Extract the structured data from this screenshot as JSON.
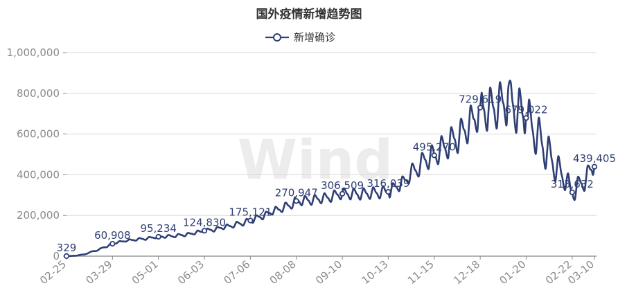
{
  "chart_data": {
    "type": "line",
    "title": "国外疫情新增趋势图",
    "legend": {
      "label": "新增确诊",
      "position": "top-center"
    },
    "color": "#2f3f73",
    "watermark": "Wind",
    "ylim": [
      0,
      1000000
    ],
    "yticks": [
      {
        "v": 0,
        "label": "0"
      },
      {
        "v": 200000,
        "label": "200,000"
      },
      {
        "v": 400000,
        "label": "400,000"
      },
      {
        "v": 600000,
        "label": "600,000"
      },
      {
        "v": 800000,
        "label": "800,000"
      },
      {
        "v": 1000000,
        "label": "1,000,000"
      }
    ],
    "xlabels": [
      "02-25",
      "03-29",
      "05-01",
      "06-03",
      "07-06",
      "08-08",
      "09-10",
      "10-13",
      "11-15",
      "12-18",
      "01-20",
      "02-22",
      "03-10"
    ],
    "xlabel_index": [
      0,
      33,
      66,
      99,
      132,
      165,
      198,
      231,
      264,
      297,
      330,
      363,
      379
    ],
    "n_points": 380,
    "grid": true,
    "anchors": [
      [
        0,
        329
      ],
      [
        6,
        2000
      ],
      [
        12,
        8000
      ],
      [
        20,
        25000
      ],
      [
        28,
        45000
      ],
      [
        33,
        60908
      ],
      [
        38,
        70000
      ],
      [
        45,
        78000
      ],
      [
        55,
        85000
      ],
      [
        66,
        95234
      ],
      [
        75,
        98000
      ],
      [
        85,
        105000
      ],
      [
        95,
        118000
      ],
      [
        99,
        124830
      ],
      [
        105,
        130000
      ],
      [
        115,
        145000
      ],
      [
        125,
        160000
      ],
      [
        132,
        175121
      ],
      [
        140,
        195000
      ],
      [
        150,
        225000
      ],
      [
        160,
        248000
      ],
      [
        165,
        270947
      ],
      [
        175,
        275000
      ],
      [
        185,
        285000
      ],
      [
        198,
        306509
      ],
      [
        210,
        305000
      ],
      [
        220,
        310000
      ],
      [
        231,
        316039
      ],
      [
        240,
        355000
      ],
      [
        250,
        420000
      ],
      [
        258,
        475000
      ],
      [
        264,
        495270
      ],
      [
        270,
        530000
      ],
      [
        280,
        580000
      ],
      [
        290,
        650000
      ],
      [
        297,
        729619
      ],
      [
        303,
        720000
      ],
      [
        310,
        740000
      ],
      [
        318,
        770000
      ],
      [
        323,
        720000
      ],
      [
        330,
        679022
      ],
      [
        337,
        600000
      ],
      [
        345,
        510000
      ],
      [
        352,
        430000
      ],
      [
        358,
        380000
      ],
      [
        363,
        313632
      ],
      [
        370,
        360000
      ],
      [
        379,
        439405
      ]
    ],
    "oscillation": [
      [
        0,
        0
      ],
      [
        20,
        0.05
      ],
      [
        60,
        0.07
      ],
      [
        150,
        0.08
      ],
      [
        250,
        0.1
      ],
      [
        290,
        0.14
      ],
      [
        318,
        0.16
      ],
      [
        345,
        0.17
      ],
      [
        379,
        0.12
      ]
    ],
    "spikes": [
      {
        "i": 318,
        "value": 858000
      }
    ],
    "labeled_points": [
      {
        "i": 0,
        "value": 329,
        "label": "329"
      },
      {
        "i": 33,
        "value": 60908,
        "label": "60,908"
      },
      {
        "i": 66,
        "value": 95234,
        "label": "95,234"
      },
      {
        "i": 99,
        "value": 124830,
        "label": "124,830"
      },
      {
        "i": 132,
        "value": 175121,
        "label": "175,121"
      },
      {
        "i": 165,
        "value": 270947,
        "label": "270,947"
      },
      {
        "i": 198,
        "value": 306509,
        "label": "306,509"
      },
      {
        "i": 231,
        "value": 316039,
        "label": "316,039"
      },
      {
        "i": 264,
        "value": 495270,
        "label": "495,270"
      },
      {
        "i": 297,
        "value": 729619,
        "label": "729,619"
      },
      {
        "i": 330,
        "value": 679022,
        "label": "679,022"
      },
      {
        "i": 363,
        "value": 313632,
        "label": "313,632"
      },
      {
        "i": 379,
        "value": 439405,
        "label": "439,405"
      }
    ]
  }
}
